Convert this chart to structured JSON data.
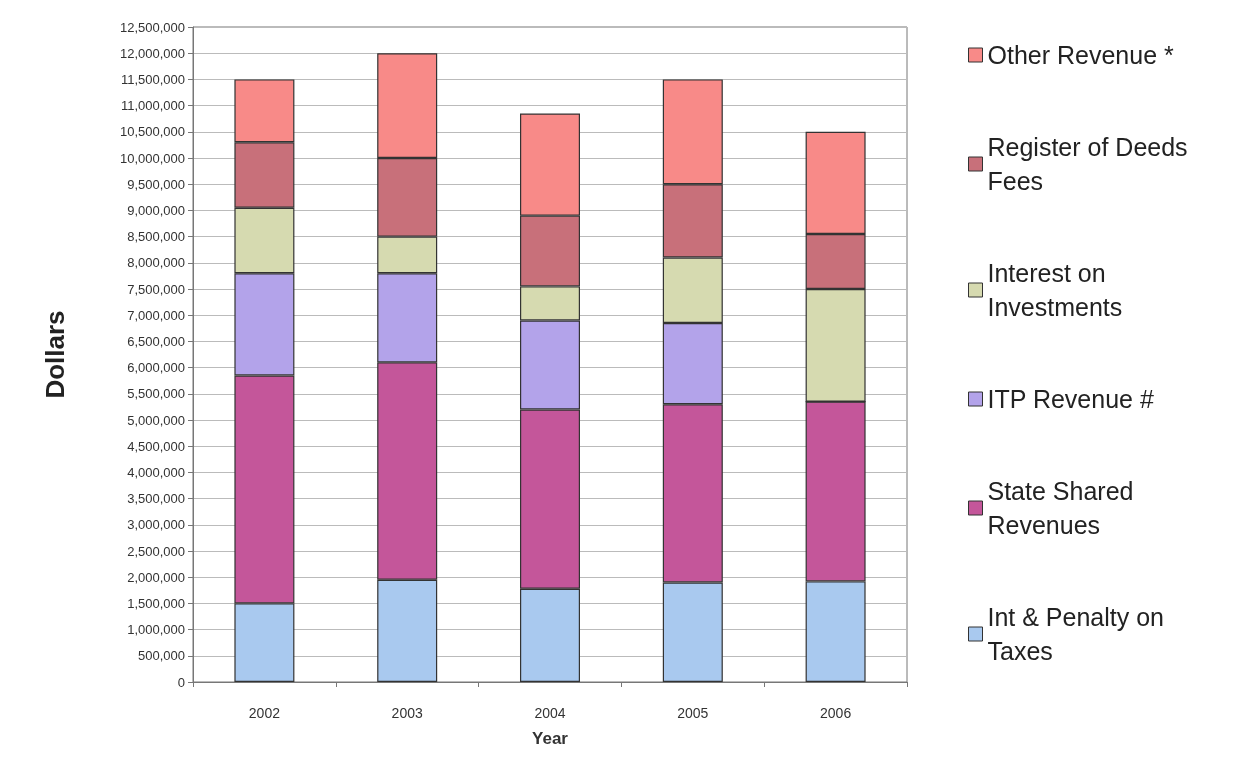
{
  "chart_data": {
    "type": "bar",
    "stacked": true,
    "xlabel": "Year",
    "ylabel": "Dollars",
    "categories": [
      "2002",
      "2003",
      "2004",
      "2005",
      "2006"
    ],
    "series": [
      {
        "name": "Int & Penalty on Taxes",
        "color": "#a9c9ef",
        "values": [
          1500000,
          1950000,
          1780000,
          1900000,
          1920000
        ]
      },
      {
        "name": "State Shared Revenues",
        "color": "#c4569a",
        "values": [
          4350000,
          4150000,
          3420000,
          3400000,
          3430000
        ]
      },
      {
        "name": "ITP Revenue #",
        "color": "#b3a3ea",
        "values": [
          1950000,
          1700000,
          1700000,
          1550000,
          0
        ]
      },
      {
        "name": "Interest on Investments",
        "color": "#d6dab0",
        "values": [
          1250000,
          700000,
          650000,
          1250000,
          2150000
        ]
      },
      {
        "name": "Register of Deeds Fees",
        "color": "#c8707a",
        "values": [
          1250000,
          1500000,
          1350000,
          1400000,
          1050000
        ]
      },
      {
        "name": "Other Revenue *",
        "color": "#f88a88",
        "values": [
          1200000,
          2000000,
          1950000,
          2000000,
          1950000
        ]
      }
    ],
    "ylim": [
      0,
      12500000
    ],
    "yticks": [
      0,
      {
        "value": 500000,
        "label": "500,000"
      },
      {
        "value": 1000000,
        "label": "1,000,000"
      },
      {
        "value": 1500000,
        "label": "1,500,000"
      },
      {
        "value": 2000000,
        "label": "2,000,000"
      },
      {
        "value": 2500000,
        "label": "2,500,000"
      },
      {
        "value": 3000000,
        "label": "3,000,000"
      },
      {
        "value": 3500000,
        "label": "3,500,000"
      },
      {
        "value": 4000000,
        "label": "4,000,000"
      },
      {
        "value": 4500000,
        "label": "4,500,000"
      },
      {
        "value": 5000000,
        "label": "5,000,000"
      },
      {
        "value": 5500000,
        "label": "5,500,000"
      },
      {
        "value": 6000000,
        "label": "6,000,000"
      },
      {
        "value": 6500000,
        "label": "6,500,000"
      },
      {
        "value": 7000000,
        "label": "7,000,000"
      },
      {
        "value": 7500000,
        "label": "7,500,000"
      },
      {
        "value": 8000000,
        "label": "8,000,000"
      },
      {
        "value": 8500000,
        "label": "8,500,000"
      },
      {
        "value": 9000000,
        "label": "9,000,000"
      },
      {
        "value": 9500000,
        "label": "9,500,000"
      },
      {
        "value": 10000000,
        "label": "10,000,000"
      },
      {
        "value": 10500000,
        "label": "10,500,000"
      },
      {
        "value": 11000000,
        "label": "11,000,000"
      },
      {
        "value": 11500000,
        "label": "11,500,000"
      },
      {
        "value": 12000000,
        "label": "12,000,000"
      },
      {
        "value": 12500000,
        "label": "12,500,000"
      }
    ],
    "grid": "y",
    "legend": "right"
  }
}
